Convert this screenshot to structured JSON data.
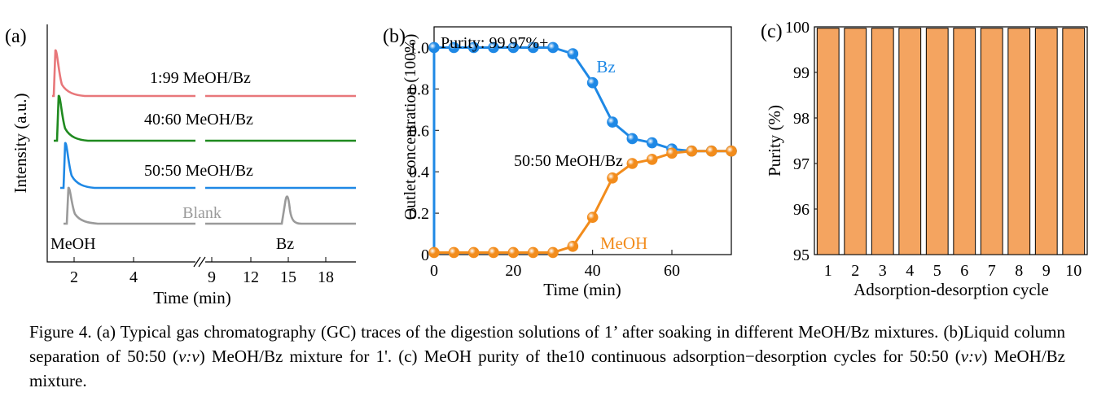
{
  "chart_data": [
    {
      "panel": "(a)",
      "type": "line",
      "xlabel": "Time (min)",
      "ylabel": "Intensity (a.u.)",
      "axis_break": true,
      "x_ticks_left": [
        "2",
        "4"
      ],
      "x_ticks_right": [
        "9",
        "12",
        "15",
        "18"
      ],
      "series": [
        {
          "name": "1:99 MeOH/Bz",
          "color": "#e8777a"
        },
        {
          "name": "40:60 MeOH/Bz",
          "color": "#1f8a1f"
        },
        {
          "name": "50:50 MeOH/Bz",
          "color": "#1e88e5"
        },
        {
          "name": "Blank",
          "color": "#9a9a9a"
        }
      ],
      "annotations": [
        "MeOH",
        "Bz"
      ]
    },
    {
      "panel": "(b)",
      "type": "line",
      "xlabel": "Time (min)",
      "ylabel": "Outlet concentration (100%)",
      "xlim": [
        0,
        75
      ],
      "ylim": [
        0,
        1.1
      ],
      "x_ticks": [
        0,
        20,
        40,
        60
      ],
      "y_ticks": [
        "0",
        "0.2",
        "0.4",
        "0.6",
        "0.8",
        "1.0"
      ],
      "x": [
        0,
        5,
        10,
        15,
        20,
        25,
        30,
        35,
        40,
        45,
        50,
        55,
        60,
        65,
        70,
        75
      ],
      "series": [
        {
          "name": "Bz",
          "color": "#1e88e5",
          "values": [
            1.0,
            1.0,
            1.0,
            1.0,
            1.0,
            1.0,
            1.0,
            0.97,
            0.83,
            0.64,
            0.56,
            0.54,
            0.51,
            0.5,
            0.5,
            0.5
          ]
        },
        {
          "name": "MeOH",
          "color": "#f28c1c",
          "values": [
            0.01,
            0.01,
            0.01,
            0.01,
            0.01,
            0.01,
            0.01,
            0.04,
            0.18,
            0.37,
            0.44,
            0.46,
            0.49,
            0.5,
            0.5,
            0.5
          ]
        }
      ],
      "annotations": [
        "Purity: 99.97%+",
        "50:50 MeOH/Bz"
      ]
    },
    {
      "panel": "(c)",
      "type": "bar",
      "xlabel": "Adsorption-desorption cycle",
      "ylabel": "Purity (%)",
      "ylim": [
        95,
        100
      ],
      "y_ticks": [
        "95",
        "96",
        "97",
        "98",
        "99",
        "100"
      ],
      "categories": [
        "1",
        "2",
        "3",
        "4",
        "5",
        "6",
        "7",
        "8",
        "9",
        "10"
      ],
      "values": [
        99.97,
        99.97,
        99.97,
        99.97,
        99.97,
        99.97,
        99.97,
        99.97,
        99.97,
        99.97
      ],
      "bar_color": "#f4a460"
    }
  ],
  "caption": {
    "part1": "Figure 4. (a) Typical gas chromatography (GC) traces of the digestion solutions of 1’ after soaking in different MeOH/Bz mixtures. (b)Liquid column separation of 50:50 (",
    "vv": "v:v",
    "part2": ") MeOH/Bz mixture for 1'. (c) MeOH purity of the10 continuous adsorption−desorption cycles for 50:50 (",
    "part3": ") MeOH/Bz mixture."
  }
}
